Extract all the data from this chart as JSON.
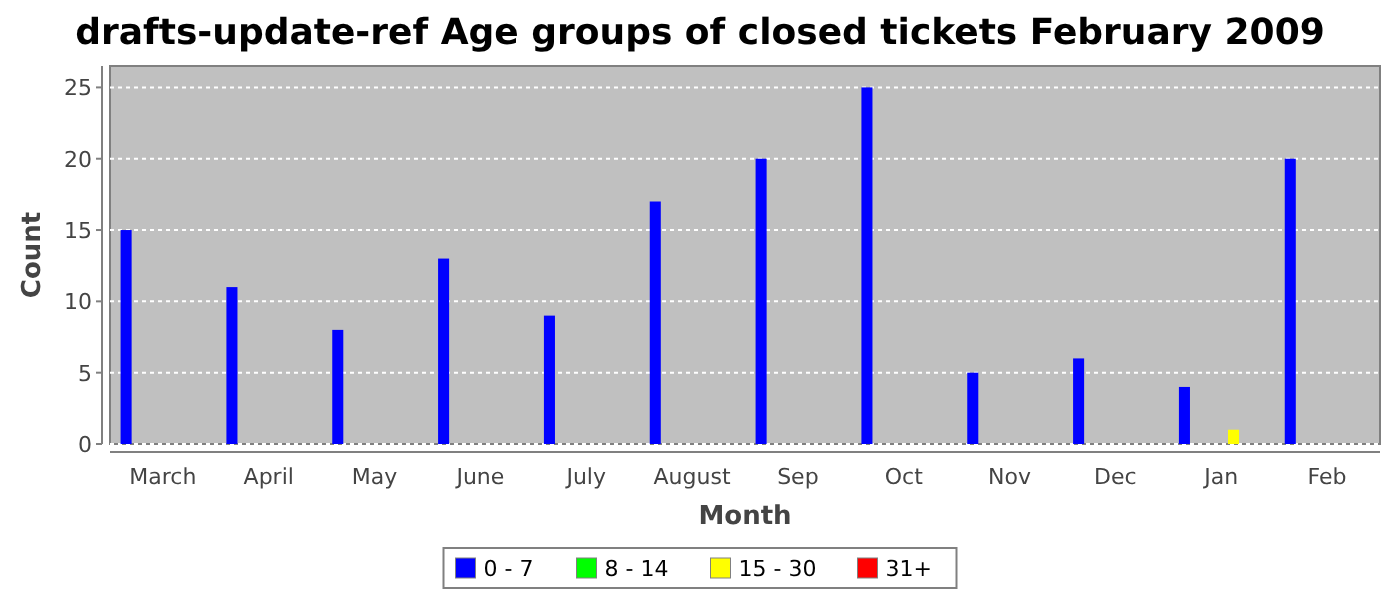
{
  "chart_data": {
    "type": "bar",
    "title": "drafts-update-ref Age groups of closed tickets February 2009",
    "xlabel": "Month",
    "ylabel": "Count",
    "categories": [
      "March",
      "April",
      "May",
      "June",
      "July",
      "August",
      "Sep",
      "Oct",
      "Nov",
      "Dec",
      "Jan",
      "Feb"
    ],
    "series": [
      {
        "name": "0 - 7",
        "color": "#0000ff",
        "values": [
          15,
          11,
          8,
          13,
          9,
          17,
          20,
          25,
          5,
          6,
          4,
          20
        ]
      },
      {
        "name": "8 - 14",
        "color": "#00ff00",
        "values": [
          0,
          0,
          0,
          0,
          0,
          0,
          0,
          0,
          0,
          0,
          0,
          0
        ]
      },
      {
        "name": "15 - 30",
        "color": "#ffff00",
        "values": [
          0,
          0,
          0,
          0,
          0,
          0,
          0,
          0,
          0,
          0,
          1,
          0
        ]
      },
      {
        "name": "31+",
        "color": "#ff0000",
        "values": [
          0,
          0,
          0,
          0,
          0,
          0,
          0,
          0,
          0,
          0,
          0,
          0
        ]
      }
    ],
    "ylim": [
      0,
      26.5
    ],
    "yticks": [
      0,
      5,
      10,
      15,
      20,
      25
    ],
    "grid": "y",
    "legend": "bottom"
  }
}
